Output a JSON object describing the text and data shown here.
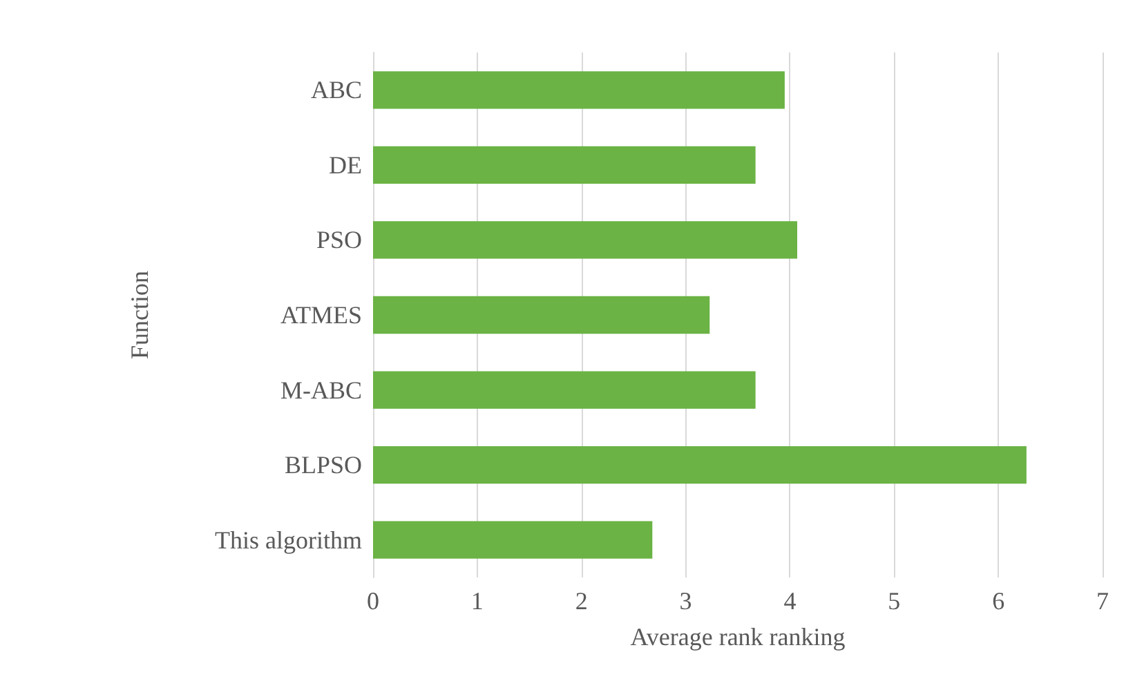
{
  "chart_data": {
    "type": "bar",
    "orientation": "horizontal",
    "xlabel": "Average rank ranking",
    "ylabel": "Function",
    "categories": [
      "ABC",
      "DE",
      "PSO",
      "ATMES",
      "M-ABC",
      "BLPSO",
      "This algorithm"
    ],
    "values": [
      3.95,
      3.67,
      4.07,
      3.23,
      3.67,
      6.27,
      2.68
    ],
    "color": "#6ab344",
    "xlim": [
      0,
      7
    ],
    "xticks": [
      0,
      1,
      2,
      3,
      4,
      5,
      6,
      7
    ],
    "grid": "x"
  }
}
